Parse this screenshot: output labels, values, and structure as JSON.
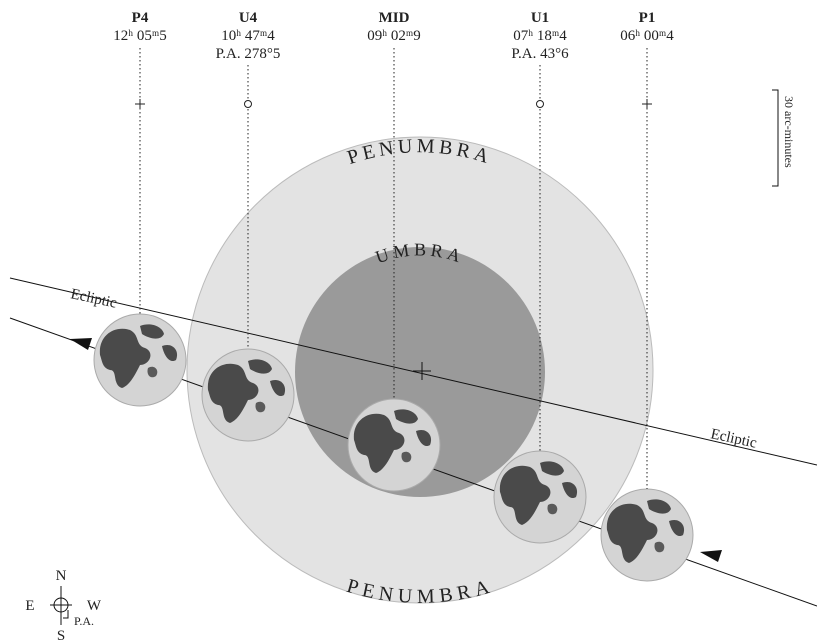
{
  "contacts": [
    {
      "name": "P4",
      "time": "12ʰ 05ᵐ5"
    },
    {
      "name": "U4",
      "time": "10ʰ 47ᵐ4",
      "pa": "P.A. 278°5"
    },
    {
      "name": "MID",
      "time": "09ʰ 02ᵐ9"
    },
    {
      "name": "U1",
      "time": "07ʰ 18ᵐ4",
      "pa": "P.A. 43°6"
    },
    {
      "name": "P1",
      "time": "06ʰ 00ᵐ4"
    }
  ],
  "scale": "30 arc-minutes",
  "penumbra_top": "PENUMBRA",
  "penumbra_bottom": "PENUMBRA",
  "umbra": "UMBRA",
  "ecliptic_left": "Ecliptic",
  "ecliptic_right": "Ecliptic",
  "compass": {
    "north": "N",
    "south": "S",
    "east": "E",
    "west": "W",
    "pa": "P.A."
  }
}
